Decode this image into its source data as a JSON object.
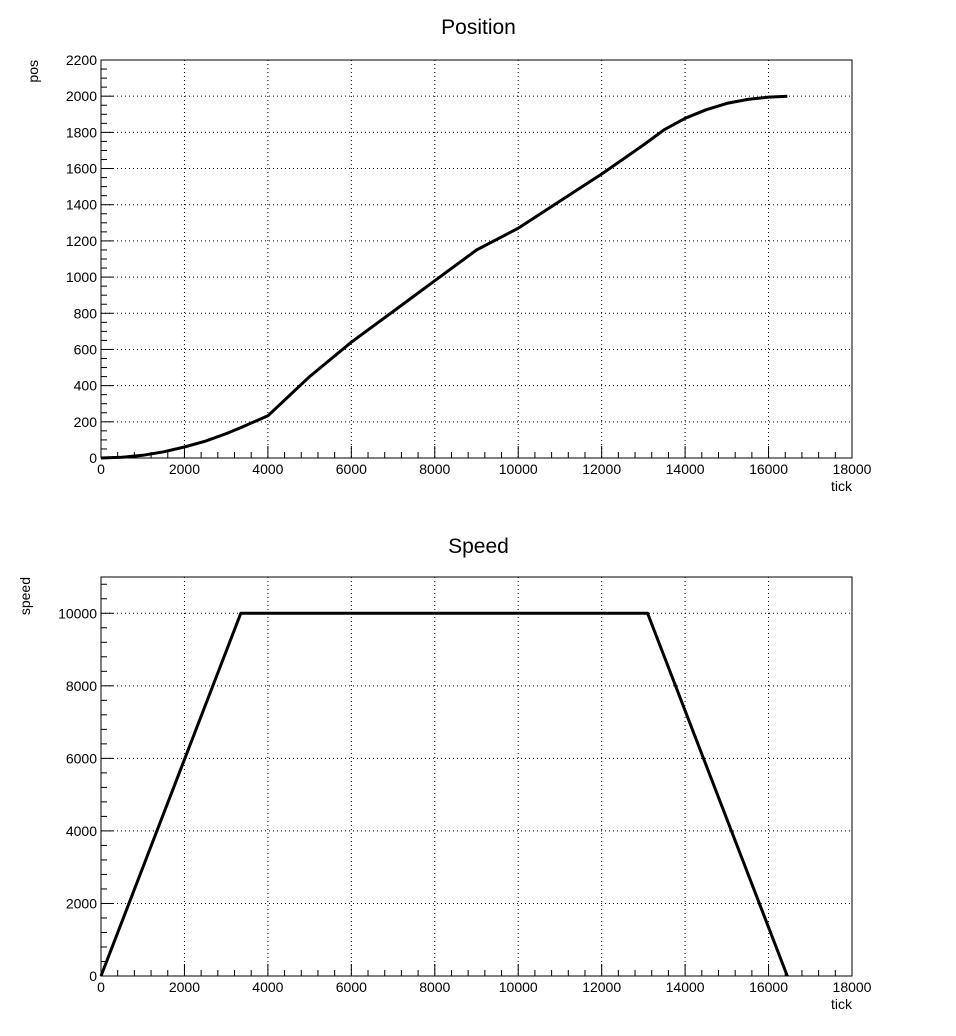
{
  "chart_data": [
    {
      "type": "line",
      "title": "Position",
      "xlabel": "tick",
      "ylabel": "pos",
      "xlim": [
        0,
        18000
      ],
      "ylim": [
        0,
        2200
      ],
      "x_ticks": [
        0,
        2000,
        4000,
        6000,
        8000,
        10000,
        12000,
        14000,
        16000,
        18000
      ],
      "y_ticks": [
        0,
        200,
        400,
        600,
        800,
        1000,
        1200,
        1400,
        1600,
        1800,
        2000,
        2200
      ],
      "grid": true,
      "line_color": "#000000",
      "series": [
        {
          "x": [
            0,
            500,
            1000,
            1500,
            2000,
            2500,
            3000,
            3350,
            4000,
            5000,
            6000,
            7000,
            8000,
            9000,
            10000,
            11000,
            12000,
            13000,
            13500,
            14000,
            14500,
            15000,
            15500,
            16000,
            16450
          ],
          "values": [
            0,
            4,
            15,
            34,
            61,
            93,
            135,
            168,
            233,
            450,
            640,
            810,
            980,
            1150,
            1270,
            1420,
            1570,
            1730,
            1815,
            1878,
            1925,
            1960,
            1982,
            1995,
            2000
          ]
        }
      ]
    },
    {
      "type": "line",
      "title": "Speed",
      "xlabel": "tick",
      "ylabel": "speed",
      "xlim": [
        0,
        18000
      ],
      "ylim": [
        0,
        11000
      ],
      "x_ticks": [
        0,
        2000,
        4000,
        6000,
        8000,
        10000,
        12000,
        14000,
        16000,
        18000
      ],
      "y_ticks": [
        0,
        2000,
        4000,
        6000,
        8000,
        10000
      ],
      "grid": true,
      "line_color": "#000000",
      "series": [
        {
          "x": [
            0,
            3350,
            13100,
            16450
          ],
          "values": [
            0,
            10000,
            10000,
            0
          ]
        }
      ]
    }
  ]
}
